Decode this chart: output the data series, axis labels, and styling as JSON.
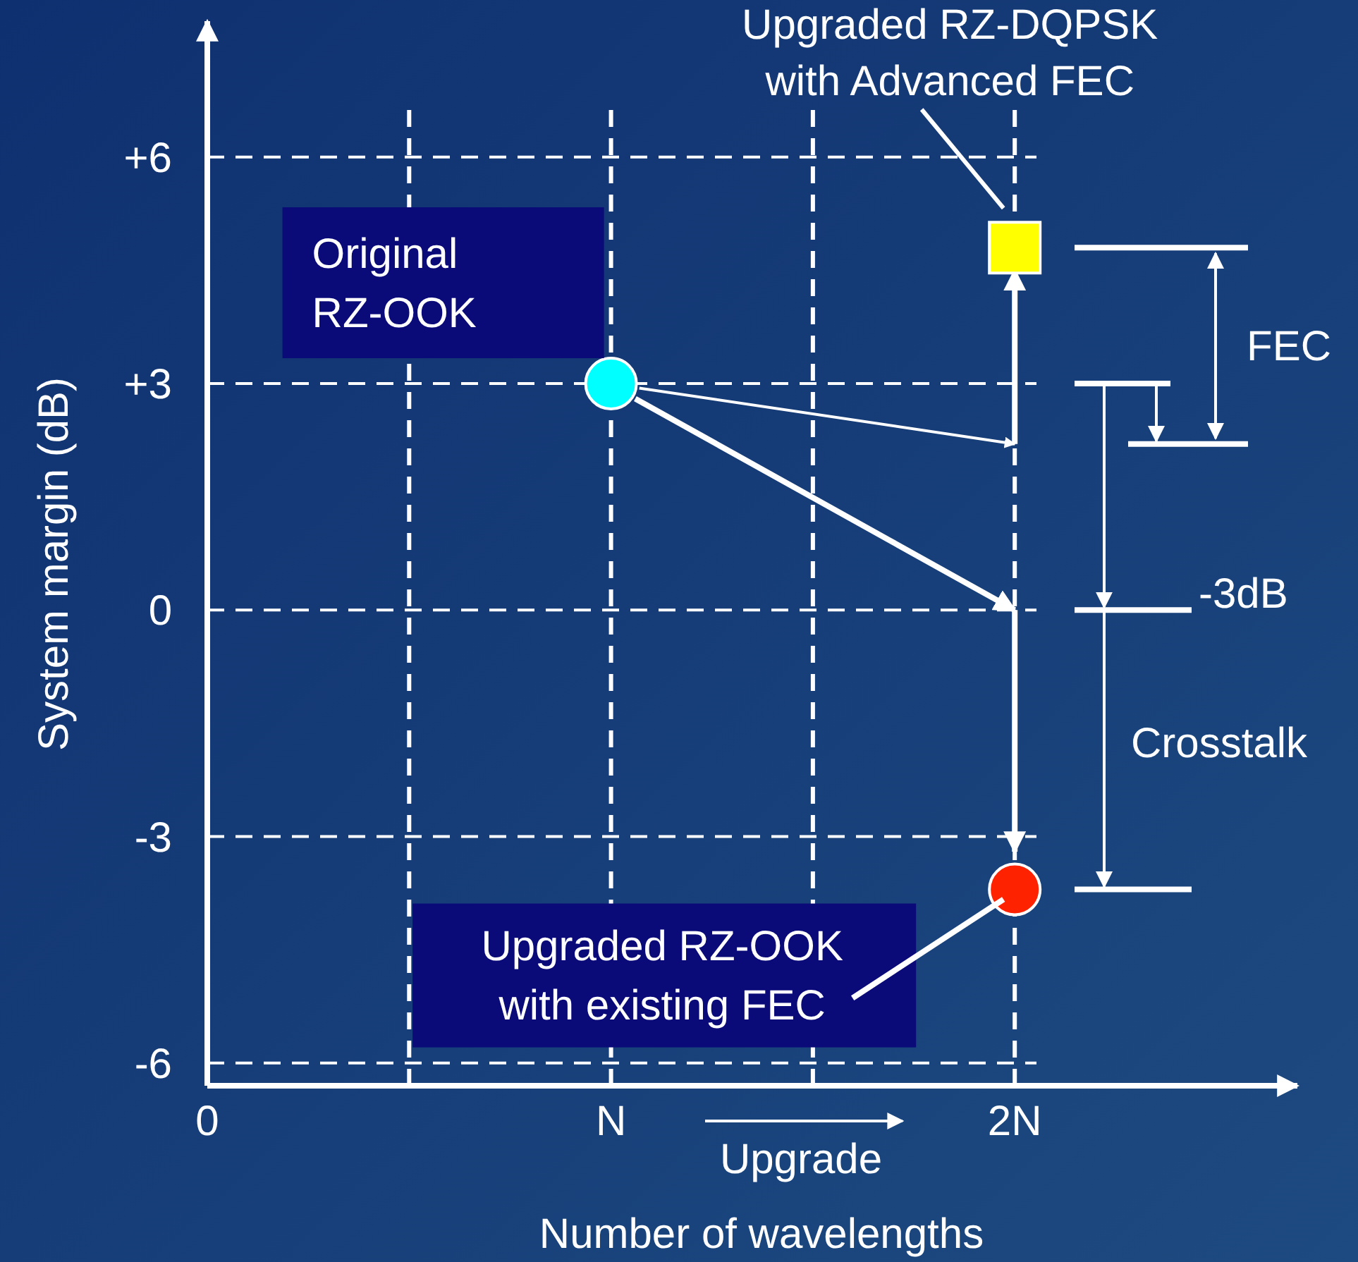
{
  "chart_data": {
    "type": "scatter",
    "xlabel": "Number of wavelengths",
    "ylabel": "System margin (dB)",
    "xlim": [
      0,
      2.7
    ],
    "ylim": [
      -6.3,
      7.8
    ],
    "xticks": [
      0,
      {
        "value": 0.5,
        "label": null
      },
      {
        "value": 1,
        "label": "N"
      },
      {
        "value": 1.5,
        "label": null
      },
      {
        "value": 2,
        "label": "2N"
      }
    ],
    "yticks": [
      {
        "value": -6,
        "label": "-6"
      },
      {
        "value": -3,
        "label": "-3"
      },
      0,
      {
        "value": 3,
        "label": "+3"
      },
      {
        "value": 6,
        "label": "+6"
      }
    ],
    "grid": true,
    "series": [
      {
        "x": [
          1
        ],
        "values": [
          3
        ],
        "color": "#00ffff",
        "marker": "circle"
      },
      {
        "x": [
          2
        ],
        "values": [
          4.8
        ],
        "color": "#ffff00",
        "marker": "square"
      },
      {
        "x": [
          2
        ],
        "values": [
          -3.7
        ],
        "color": "#ff2200",
        "marker": "circle"
      },
      {
        "type": "line",
        "x": [
          1.07,
          2
        ],
        "values": [
          2.94,
          2.2
        ],
        "color": "#ffffff"
      },
      {
        "type": "line",
        "x": [
          1.06,
          2
        ],
        "values": [
          2.8,
          0
        ],
        "color": "#ffffff"
      },
      {
        "type": "line",
        "x": [
          2,
          2
        ],
        "values": [
          2.2,
          4.5
        ],
        "color": "#ffffff"
      },
      {
        "type": "line",
        "x": [
          2,
          2
        ],
        "values": [
          0,
          -3.2
        ],
        "color": "#ffffff"
      }
    ],
    "annotations": [
      "Upgraded RZ-DQPSK with Advanced FEC",
      "Original RZ-OOK",
      "Upgraded RZ-OOK with existing FEC",
      "FEC",
      "-3dB",
      "Crosstalk",
      "Upgrade"
    ]
  }
}
